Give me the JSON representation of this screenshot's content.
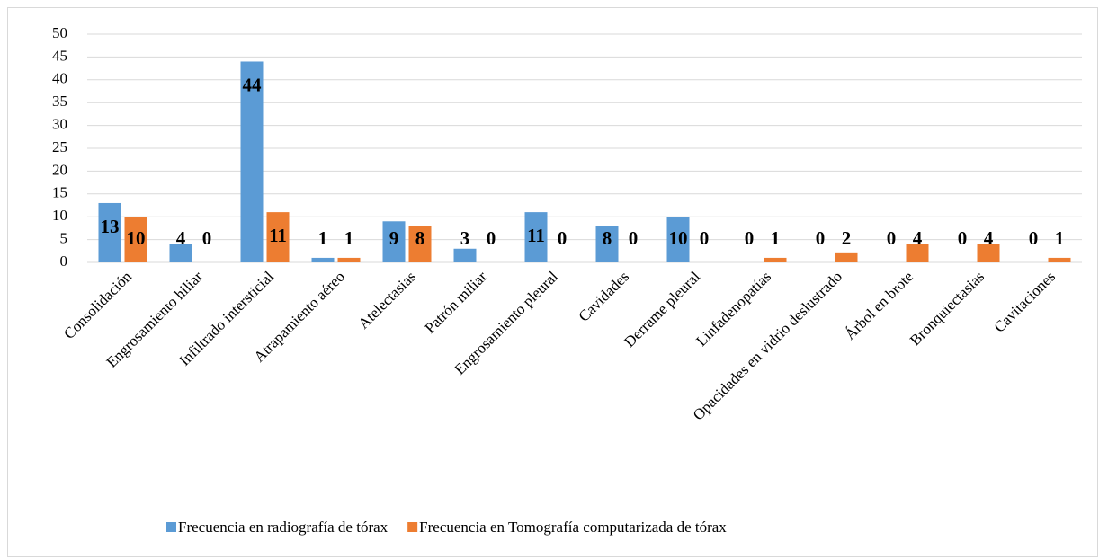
{
  "chart_data": {
    "type": "bar",
    "categories": [
      "Consolidación",
      "Engrosamiento hiliar",
      "Infiltrado intersticial",
      "Atrapamiento aéreo",
      "Atelectasias",
      "Patrón miliar",
      "Engrosamiento pleural",
      "Cavidades",
      "Derrame pleural",
      "Linfadenopatías",
      "Opacidades en vidrio deslustrado",
      "Árbol en brote",
      "Bronquiectasias",
      "Cavitaciones"
    ],
    "series": [
      {
        "name": "Frecuencia en radiografía de tórax",
        "color": "#5b9bd5",
        "values": [
          13,
          4,
          44,
          1,
          9,
          3,
          11,
          8,
          10,
          0,
          0,
          0,
          0,
          0
        ]
      },
      {
        "name": "Frecuencia en Tomografía computarizada de tórax",
        "color": "#ed7d31",
        "values": [
          10,
          0,
          11,
          1,
          8,
          0,
          0,
          0,
          0,
          1,
          2,
          4,
          4,
          1
        ]
      }
    ],
    "ylim": [
      0,
      50
    ],
    "yticks": [
      0,
      5,
      10,
      15,
      20,
      25,
      30,
      35,
      40,
      45,
      50
    ],
    "grid": true,
    "legend": "bottom"
  }
}
